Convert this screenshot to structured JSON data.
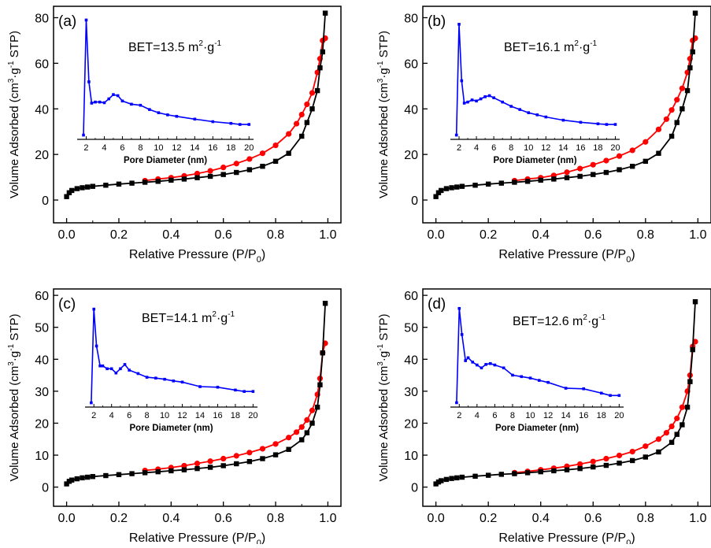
{
  "xlabel_main": "Relative Pressure (P/P",
  "xlabel_main_sub": "0",
  "xlabel_main_close": ")",
  "ylabel_main_parts": [
    "Volume Adsorbed (cm",
    "3",
    "·g",
    "-1",
    " STP)"
  ],
  "inset_xlabel": "Pore Diameter (nm)",
  "bet_prefix": "BET=",
  "bet_unit_parts": [
    " m",
    "2",
    "·g",
    "-1"
  ],
  "colors": {
    "adsorption": "#000000",
    "desorption": "#ff0000",
    "pore_distribution": "#0000ff"
  },
  "chart_data": [
    {
      "panel": "(a)",
      "type": "line",
      "bet_value": "13.5",
      "xlim": [
        -0.05,
        1.05
      ],
      "ylim": [
        -10,
        85
      ],
      "xticks": [
        "0.0",
        "0.2",
        "0.4",
        "0.6",
        "0.8",
        "1.0"
      ],
      "yticks": [
        "0",
        "20",
        "40",
        "60",
        "80"
      ],
      "adsorption": {
        "x": [
          0.0,
          0.01,
          0.02,
          0.04,
          0.06,
          0.08,
          0.1,
          0.15,
          0.2,
          0.25,
          0.3,
          0.35,
          0.4,
          0.45,
          0.5,
          0.55,
          0.6,
          0.65,
          0.7,
          0.75,
          0.8,
          0.85,
          0.9,
          0.92,
          0.94,
          0.96,
          0.97,
          0.98,
          0.99
        ],
        "y": [
          1.5,
          3.2,
          4.2,
          5.0,
          5.4,
          5.7,
          6.0,
          6.5,
          7.0,
          7.4,
          7.8,
          8.2,
          8.7,
          9.2,
          9.8,
          10.4,
          11.2,
          12.1,
          13.3,
          14.8,
          17.0,
          20.5,
          28.0,
          34.0,
          40.0,
          48.0,
          58.0,
          65.0,
          82.0
        ]
      },
      "desorption": {
        "x": [
          0.3,
          0.35,
          0.4,
          0.45,
          0.5,
          0.55,
          0.6,
          0.65,
          0.7,
          0.75,
          0.8,
          0.85,
          0.88,
          0.9,
          0.92,
          0.94,
          0.96,
          0.97,
          0.98,
          0.99
        ],
        "y": [
          8.5,
          9.2,
          9.8,
          10.6,
          11.6,
          12.8,
          14.3,
          16.0,
          18.0,
          20.5,
          24.0,
          29.0,
          33.5,
          37.5,
          42.0,
          47.0,
          56.0,
          62.0,
          70.0,
          71.0
        ]
      },
      "inset": {
        "xlim": [
          1,
          20.5
        ],
        "ylim": [
          30,
          88
        ],
        "xticks": [
          "2",
          "4",
          "6",
          "8",
          "10",
          "12",
          "14",
          "16",
          "18",
          "20"
        ],
        "x": [
          1.7,
          2.0,
          2.3,
          2.6,
          3.0,
          3.5,
          4.0,
          4.5,
          5.0,
          5.5,
          6.0,
          7.0,
          8.0,
          9.0,
          10.0,
          11.0,
          12.0,
          14.0,
          16.0,
          18.0,
          19.0,
          20.0
        ],
        "y": [
          32,
          86,
          57,
          47,
          47.5,
          47.5,
          47.2,
          49,
          51,
          50.5,
          48,
          46.5,
          46,
          44,
          42.5,
          41.5,
          40.8,
          39.5,
          38.3,
          37.5,
          37.0,
          37.0
        ]
      }
    },
    {
      "panel": "(b)",
      "type": "line",
      "bet_value": "16.1",
      "xlim": [
        -0.05,
        1.05
      ],
      "ylim": [
        -10,
        85
      ],
      "xticks": [
        "0.0",
        "0.2",
        "0.4",
        "0.6",
        "0.8",
        "1.0"
      ],
      "yticks": [
        "0",
        "20",
        "40",
        "60",
        "80"
      ],
      "adsorption": {
        "x": [
          0.0,
          0.01,
          0.02,
          0.04,
          0.06,
          0.08,
          0.1,
          0.15,
          0.2,
          0.25,
          0.3,
          0.35,
          0.4,
          0.45,
          0.5,
          0.55,
          0.6,
          0.65,
          0.7,
          0.75,
          0.8,
          0.85,
          0.9,
          0.92,
          0.94,
          0.96,
          0.97,
          0.98,
          0.99
        ],
        "y": [
          1.5,
          3.2,
          4.2,
          5.0,
          5.4,
          5.7,
          6.0,
          6.5,
          7.0,
          7.4,
          7.8,
          8.2,
          8.7,
          9.2,
          9.8,
          10.4,
          11.2,
          12.1,
          13.3,
          14.8,
          17.0,
          20.5,
          28.0,
          34.0,
          40.0,
          48.0,
          58.0,
          65.0,
          82.0
        ]
      },
      "desorption": {
        "x": [
          0.3,
          0.35,
          0.4,
          0.45,
          0.5,
          0.55,
          0.6,
          0.65,
          0.7,
          0.75,
          0.8,
          0.85,
          0.88,
          0.9,
          0.92,
          0.94,
          0.96,
          0.97,
          0.98,
          0.99
        ],
        "y": [
          8.5,
          9.2,
          9.8,
          10.8,
          12.2,
          13.8,
          15.5,
          17.3,
          19.3,
          21.8,
          25.5,
          31.0,
          35.5,
          39.5,
          44.0,
          49.0,
          56.0,
          62.0,
          70.0,
          71.0
        ]
      },
      "inset": {
        "xlim": [
          1,
          20.5
        ],
        "ylim": [
          30,
          88
        ],
        "xticks": [
          "2",
          "4",
          "6",
          "8",
          "10",
          "12",
          "14",
          "16",
          "18",
          "20"
        ],
        "x": [
          1.7,
          2.0,
          2.3,
          2.6,
          3.0,
          3.5,
          4.0,
          4.5,
          5.0,
          5.5,
          6.0,
          7.0,
          8.0,
          9.0,
          10.0,
          11.0,
          12.0,
          14.0,
          16.0,
          18.0,
          19.0,
          20.0
        ],
        "y": [
          32,
          84,
          57.5,
          47,
          47.5,
          48.5,
          48,
          49,
          50,
          50.5,
          49.5,
          47.5,
          45.5,
          44,
          42.5,
          41.5,
          40.5,
          39,
          38,
          37.3,
          37.0,
          37.0
        ]
      }
    },
    {
      "panel": "(c)",
      "type": "line",
      "bet_value": "14.1",
      "xlim": [
        -0.05,
        1.05
      ],
      "ylim": [
        -6,
        62
      ],
      "xticks": [
        "0.0",
        "0.2",
        "0.4",
        "0.6",
        "0.8",
        "1.0"
      ],
      "yticks": [
        "0",
        "10",
        "20",
        "30",
        "40",
        "50",
        "60"
      ],
      "adsorption": {
        "x": [
          0.0,
          0.01,
          0.02,
          0.04,
          0.06,
          0.08,
          0.1,
          0.15,
          0.2,
          0.25,
          0.3,
          0.35,
          0.4,
          0.45,
          0.5,
          0.55,
          0.6,
          0.65,
          0.7,
          0.75,
          0.8,
          0.85,
          0.9,
          0.92,
          0.94,
          0.96,
          0.97,
          0.98,
          0.99
        ],
        "y": [
          1.0,
          1.8,
          2.2,
          2.6,
          2.9,
          3.1,
          3.3,
          3.6,
          3.9,
          4.2,
          4.5,
          4.8,
          5.1,
          5.4,
          5.8,
          6.2,
          6.7,
          7.3,
          8.0,
          8.9,
          10.1,
          11.8,
          14.8,
          17.0,
          20.0,
          25.0,
          32.0,
          42.0,
          57.5
        ]
      },
      "desorption": {
        "x": [
          0.3,
          0.35,
          0.4,
          0.45,
          0.5,
          0.55,
          0.6,
          0.65,
          0.7,
          0.75,
          0.8,
          0.85,
          0.88,
          0.9,
          0.92,
          0.94,
          0.96,
          0.97,
          0.98,
          0.99
        ],
        "y": [
          5.2,
          5.6,
          6.1,
          6.7,
          7.4,
          8.1,
          8.9,
          9.8,
          10.8,
          12.0,
          13.5,
          15.5,
          17.2,
          18.8,
          21.0,
          24.0,
          29.0,
          34.0,
          42.0,
          45.0
        ]
      },
      "inset": {
        "xlim": [
          1,
          20.5
        ],
        "ylim": [
          24,
          62
        ],
        "xticks": [
          "2",
          "4",
          "6",
          "8",
          "10",
          "12",
          "14",
          "16",
          "18",
          "20"
        ],
        "x": [
          1.7,
          2.0,
          2.3,
          2.7,
          3.0,
          3.5,
          4.0,
          4.5,
          5.0,
          5.5,
          6.0,
          7.0,
          8.0,
          9.0,
          10.0,
          11.0,
          12.0,
          14.0,
          16.0,
          18.0,
          19.0,
          20.0
        ],
        "y": [
          25.5,
          58.5,
          45.5,
          38.5,
          38.5,
          37.5,
          37.5,
          36,
          37.5,
          39,
          37,
          35.8,
          34.5,
          34.2,
          33.8,
          33.2,
          32.8,
          31.2,
          31.0,
          30.0,
          29.5,
          29.5
        ]
      }
    },
    {
      "panel": "(d)",
      "type": "line",
      "bet_value": "12.6",
      "xlim": [
        -0.05,
        1.05
      ],
      "ylim": [
        -6,
        62
      ],
      "xticks": [
        "0.0",
        "0.2",
        "0.4",
        "0.6",
        "0.8",
        "1.0"
      ],
      "yticks": [
        "0",
        "10",
        "20",
        "30",
        "40",
        "50",
        "60"
      ],
      "adsorption": {
        "x": [
          0.0,
          0.01,
          0.02,
          0.04,
          0.06,
          0.08,
          0.1,
          0.15,
          0.2,
          0.25,
          0.3,
          0.35,
          0.4,
          0.45,
          0.5,
          0.55,
          0.6,
          0.65,
          0.7,
          0.75,
          0.8,
          0.85,
          0.9,
          0.92,
          0.94,
          0.96,
          0.97,
          0.98,
          0.99
        ],
        "y": [
          1.0,
          1.6,
          2.0,
          2.4,
          2.7,
          2.9,
          3.1,
          3.4,
          3.7,
          4.0,
          4.2,
          4.5,
          4.8,
          5.1,
          5.4,
          5.8,
          6.3,
          6.8,
          7.5,
          8.3,
          9.4,
          11.0,
          14.0,
          16.5,
          19.5,
          25.0,
          33.0,
          43.0,
          58.0
        ]
      },
      "desorption": {
        "x": [
          0.3,
          0.35,
          0.4,
          0.45,
          0.5,
          0.55,
          0.6,
          0.65,
          0.7,
          0.75,
          0.8,
          0.85,
          0.88,
          0.9,
          0.92,
          0.94,
          0.96,
          0.97,
          0.98,
          0.99
        ],
        "y": [
          4.5,
          4.9,
          5.4,
          5.9,
          6.5,
          7.2,
          8.0,
          8.9,
          9.9,
          11.1,
          12.8,
          15.0,
          17.0,
          19.0,
          21.5,
          25.0,
          30.0,
          35.0,
          44.0,
          45.5
        ]
      },
      "inset": {
        "xlim": [
          1,
          20.5
        ],
        "ylim": [
          24,
          62
        ],
        "xticks": [
          "2",
          "4",
          "6",
          "8",
          "10",
          "12",
          "14",
          "16",
          "18",
          "20"
        ],
        "x": [
          1.7,
          2.0,
          2.3,
          2.7,
          3.0,
          3.5,
          4.0,
          4.5,
          5.0,
          5.5,
          6.0,
          7.0,
          8.0,
          9.0,
          10.0,
          11.0,
          12.0,
          14.0,
          16.0,
          18.0,
          19.0,
          20.0
        ],
        "y": [
          25.5,
          58,
          49,
          40,
          41,
          39.5,
          38.5,
          37.5,
          38.7,
          39,
          38.5,
          37.5,
          35,
          34.5,
          34.0,
          33.2,
          32.5,
          30.5,
          30.3,
          28.8,
          28.0,
          28.0
        ]
      }
    }
  ]
}
